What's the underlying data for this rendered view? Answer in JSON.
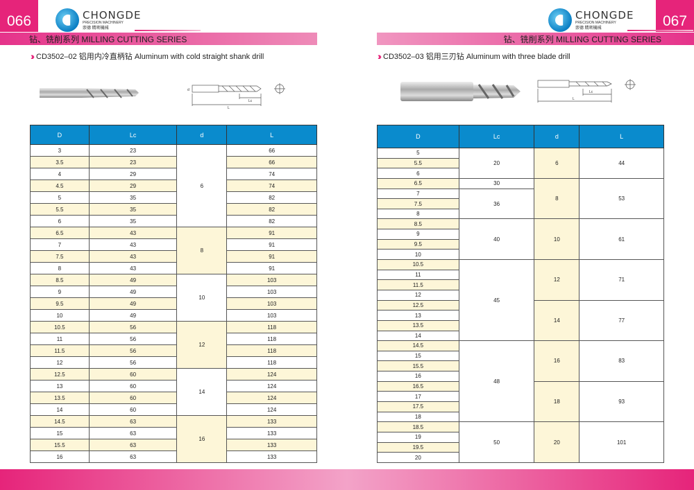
{
  "left": {
    "page_number": "066",
    "logo": {
      "brand": "CHONGDE",
      "sub": "PRECISION MACHINERY",
      "cn": "崇德 精密機械"
    },
    "series": "钻、铣削系列 MILLING  CUTTING SERIES",
    "product": "CD3502–02    铝用内冷直柄钻  Aluminum  with cold straight shank drill",
    "headers": [
      "D",
      "Lc",
      "d",
      "L"
    ],
    "rows": [
      [
        "3",
        "23",
        "66"
      ],
      [
        "3.5",
        "23",
        "66"
      ],
      [
        "4",
        "29",
        "74"
      ],
      [
        "4.5",
        "29",
        "74"
      ],
      [
        "5",
        "35",
        "82"
      ],
      [
        "5.5",
        "35",
        "82"
      ],
      [
        "6",
        "35",
        "82"
      ],
      [
        "6.5",
        "43",
        "91"
      ],
      [
        "7",
        "43",
        "91"
      ],
      [
        "7.5",
        "43",
        "91"
      ],
      [
        "8",
        "43",
        "91"
      ],
      [
        "8.5",
        "49",
        "103"
      ],
      [
        "9",
        "49",
        "103"
      ],
      [
        "9.5",
        "49",
        "103"
      ],
      [
        "10",
        "49",
        "103"
      ],
      [
        "10.5",
        "56",
        "118"
      ],
      [
        "11",
        "56",
        "118"
      ],
      [
        "11.5",
        "56",
        "118"
      ],
      [
        "12",
        "56",
        "118"
      ],
      [
        "12.5",
        "60",
        "124"
      ],
      [
        "13",
        "60",
        "124"
      ],
      [
        "13.5",
        "60",
        "124"
      ],
      [
        "14",
        "60",
        "124"
      ],
      [
        "14.5",
        "63",
        "133"
      ],
      [
        "15",
        "63",
        "133"
      ],
      [
        "15.5",
        "63",
        "133"
      ],
      [
        "16",
        "63",
        "133"
      ]
    ],
    "d_groups": [
      {
        "value": "6",
        "rows": 7
      },
      {
        "value": "8",
        "rows": 4
      },
      {
        "value": "10",
        "rows": 4
      },
      {
        "value": "12",
        "rows": 4
      },
      {
        "value": "14",
        "rows": 4
      },
      {
        "value": "16",
        "rows": 4
      }
    ]
  },
  "right": {
    "page_number": "067",
    "logo": {
      "brand": "CHONGDE",
      "sub": "PRECISION MACHINERY",
      "cn": "崇德 精密機械"
    },
    "series": "钻、铣削系列 MILLING  CUTTING SERIES",
    "product": "CD3502–03  铝用三刃钻  Aluminum  with three blade drill",
    "headers": [
      "D",
      "Lc",
      "d",
      "L"
    ],
    "D": [
      "5",
      "5.5",
      "6",
      "6.5",
      "7",
      "7.5",
      "8",
      "8.5",
      "9",
      "9.5",
      "10",
      "10.5",
      "11",
      "11.5",
      "12",
      "12.5",
      "13",
      "13.5",
      "14",
      "14.5",
      "15",
      "15.5",
      "16",
      "16.5",
      "17",
      "17.5",
      "18",
      "18.5",
      "19",
      "19.5",
      "20"
    ],
    "Lc_groups": [
      {
        "value": "20",
        "rows": 3
      },
      {
        "value": "30",
        "rows": 1
      },
      {
        "value": "36",
        "rows": 3
      },
      {
        "value": "40",
        "rows": 4
      },
      {
        "value": "45",
        "rows": 8
      },
      {
        "value": "48",
        "rows": 8
      },
      {
        "value": "50",
        "rows": 4
      }
    ],
    "dL_groups": [
      {
        "d": "6",
        "L": "44",
        "rows": 3
      },
      {
        "d": "8",
        "L": "53",
        "rows": 4
      },
      {
        "d": "10",
        "L": "61",
        "rows": 4
      },
      {
        "d": "12",
        "L": "71",
        "rows": 4
      },
      {
        "d": "14",
        "L": "77",
        "rows": 4
      },
      {
        "d": "16",
        "L": "83",
        "rows": 4
      },
      {
        "d": "18",
        "L": "93",
        "rows": 4
      },
      {
        "d": "20",
        "L": "101",
        "rows": 4
      }
    ]
  },
  "diagram_labels": {
    "d": "d",
    "D": "D",
    "Lc": "Lc",
    "L": "L"
  },
  "colors": {
    "pink": "#e6247a",
    "header_blue": "#0a8bcd",
    "row_yellow": "#fdf6d8"
  }
}
